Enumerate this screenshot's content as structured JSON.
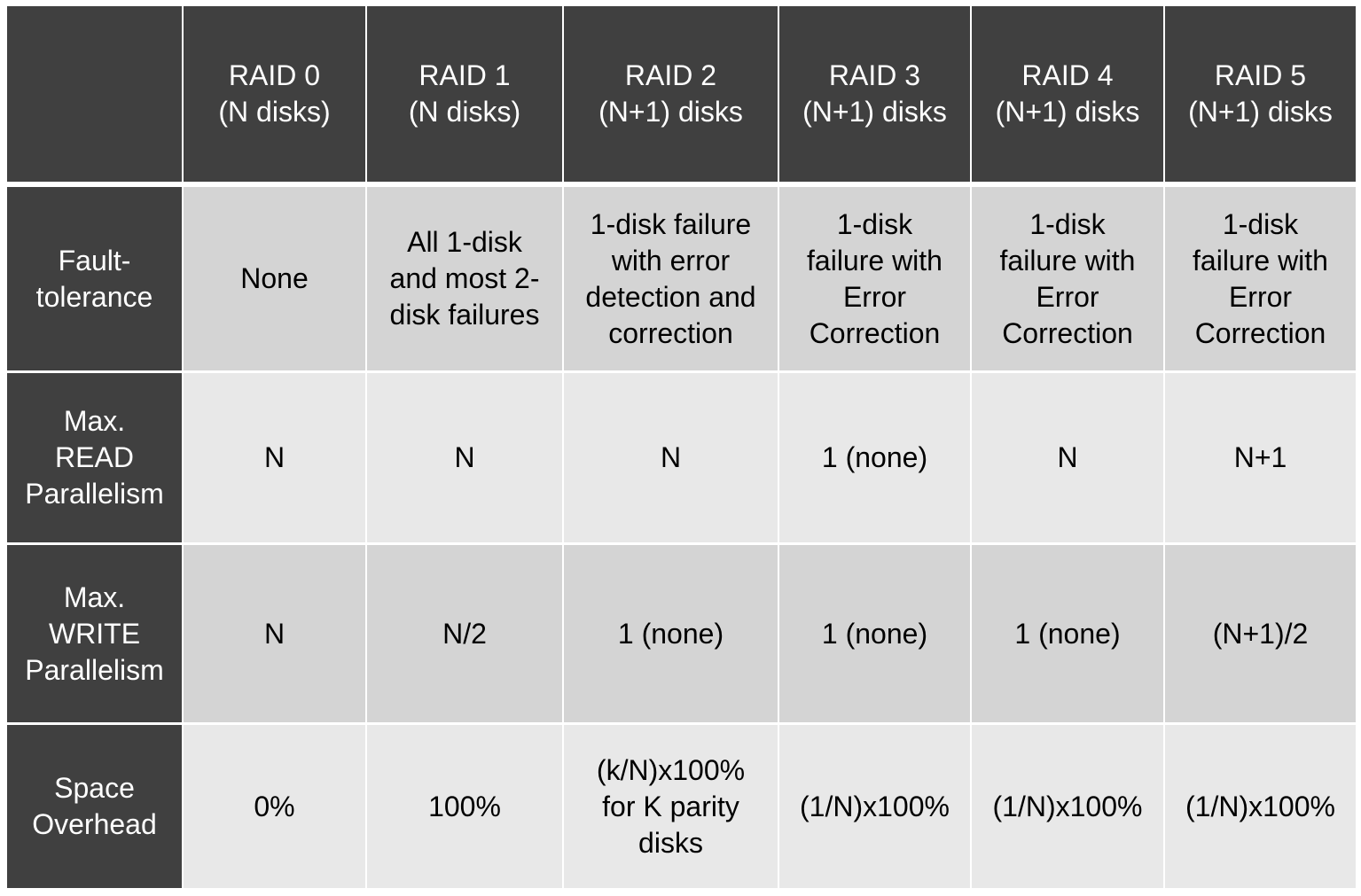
{
  "table": {
    "corner": "",
    "headers": [
      "RAID 0\n(N disks)",
      "RAID 1\n(N disks)",
      "RAID 2\n(N+1) disks",
      "RAID 3\n(N+1) disks",
      "RAID 4\n(N+1) disks",
      "RAID 5\n(N+1) disks"
    ],
    "rows": [
      {
        "label": "Fault-\ntolerance",
        "cells": [
          "None",
          "All 1-disk\nand most 2-\ndisk failures",
          "1-disk failure\nwith error\ndetection and\ncorrection",
          "1-disk\nfailure with\nError\nCorrection",
          "1-disk\nfailure with\nError\nCorrection",
          "1-disk\nfailure with\nError\nCorrection"
        ]
      },
      {
        "label": "Max.\nREAD\nParallelism",
        "cells": [
          "N",
          "N",
          "N",
          "1 (none)",
          "N",
          "N+1"
        ]
      },
      {
        "label": "Max.\nWRITE\nParallelism",
        "cells": [
          "N",
          "N/2",
          "1 (none)",
          "1 (none)",
          "1 (none)",
          "(N+1)/2"
        ]
      },
      {
        "label": "Space\nOverhead",
        "cells": [
          "0%",
          "100%",
          "(k/N)x100%\nfor K parity\ndisks",
          "(1/N)x100%",
          "(1/N)x100%",
          "(1/N)x100%"
        ]
      }
    ]
  }
}
